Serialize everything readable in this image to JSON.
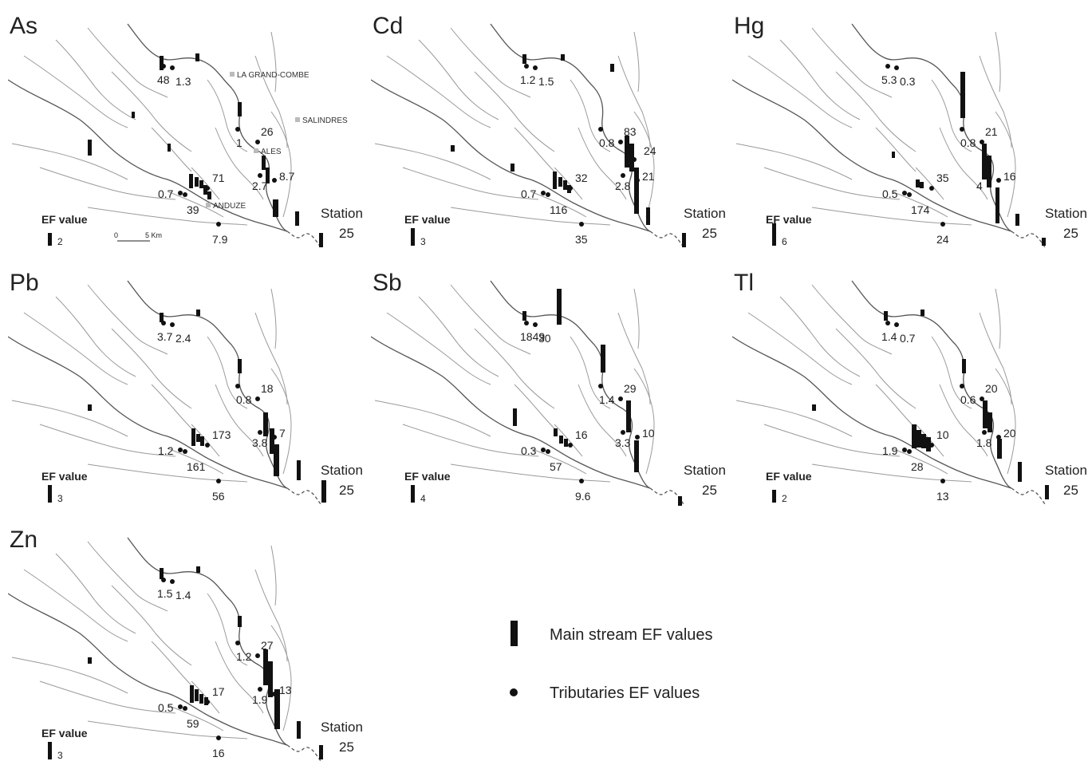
{
  "panels": [
    {
      "element": "As",
      "ef_label": "EF value",
      "ef_legend": "2",
      "station_label": "Station",
      "station_value": "25",
      "tributaries": [
        {
          "id": "t1",
          "value": "48"
        },
        {
          "id": "t2",
          "value": "1.3"
        },
        {
          "id": "t3",
          "value": "1"
        },
        {
          "id": "t4",
          "value": "26"
        },
        {
          "id": "t5",
          "value": "2.7"
        },
        {
          "id": "t6",
          "value": "8.7"
        },
        {
          "id": "t7",
          "value": "0.7"
        },
        {
          "id": "t8",
          "value": "39"
        },
        {
          "id": "t9",
          "value": "71"
        },
        {
          "id": "t10",
          "value": "7.9"
        }
      ],
      "towns": [
        "LA GRAND-COMBE",
        "SALINDRES",
        "ALES",
        "ANDUZE"
      ],
      "scale": {
        "zero": "0",
        "label": "5 Km"
      }
    },
    {
      "element": "Cd",
      "ef_label": "EF value",
      "ef_legend": "3",
      "station_label": "Station",
      "station_value": "25",
      "tributaries": [
        {
          "id": "t1",
          "value": "1.2"
        },
        {
          "id": "t2",
          "value": "1.5"
        },
        {
          "id": "t3",
          "value": "0.8"
        },
        {
          "id": "t4",
          "value": "83"
        },
        {
          "id": "t5",
          "value": "2.8"
        },
        {
          "id": "t6",
          "value": "21"
        },
        {
          "id": "t7",
          "value": "0.7"
        },
        {
          "id": "t8",
          "value": "116"
        },
        {
          "id": "t9",
          "value": "32"
        },
        {
          "id": "t10",
          "value": "35"
        },
        {
          "id": "t11",
          "value": "24"
        }
      ]
    },
    {
      "element": "Hg",
      "ef_label": "EF value",
      "ef_legend": "6",
      "station_label": "Station",
      "station_value": "25",
      "tributaries": [
        {
          "id": "t1",
          "value": "5.3"
        },
        {
          "id": "t2",
          "value": "0.3"
        },
        {
          "id": "t3",
          "value": "0.8"
        },
        {
          "id": "t4",
          "value": "21"
        },
        {
          "id": "t5",
          "value": "4"
        },
        {
          "id": "t6",
          "value": "16"
        },
        {
          "id": "t7",
          "value": "0.5"
        },
        {
          "id": "t8",
          "value": "174"
        },
        {
          "id": "t9",
          "value": "35"
        },
        {
          "id": "t10",
          "value": "24"
        }
      ]
    },
    {
      "element": "Pb",
      "ef_label": "EF value",
      "ef_legend": "3",
      "station_label": "Station",
      "station_value": "25",
      "tributaries": [
        {
          "id": "t1",
          "value": "3.7"
        },
        {
          "id": "t2",
          "value": "2.4"
        },
        {
          "id": "t3",
          "value": "0.8"
        },
        {
          "id": "t4",
          "value": "18"
        },
        {
          "id": "t5",
          "value": "3.8"
        },
        {
          "id": "t6",
          "value": "7"
        },
        {
          "id": "t7",
          "value": "1.2"
        },
        {
          "id": "t8",
          "value": "161"
        },
        {
          "id": "t9",
          "value": "173"
        },
        {
          "id": "t10",
          "value": "56"
        }
      ]
    },
    {
      "element": "Sb",
      "ef_label": "EF value",
      "ef_legend": "4",
      "station_label": "Station",
      "station_value": "25",
      "tributaries": [
        {
          "id": "t1",
          "value": "1849"
        },
        {
          "id": "t2",
          "value": "30"
        },
        {
          "id": "t3",
          "value": "1.4"
        },
        {
          "id": "t4",
          "value": "29"
        },
        {
          "id": "t5",
          "value": "3.3"
        },
        {
          "id": "t6",
          "value": "10"
        },
        {
          "id": "t7",
          "value": "0.3"
        },
        {
          "id": "t8",
          "value": "57"
        },
        {
          "id": "t9",
          "value": "16"
        },
        {
          "id": "t10",
          "value": "9.6"
        }
      ]
    },
    {
      "element": "Tl",
      "ef_label": "EF value",
      "ef_legend": "2",
      "station_label": "Station",
      "station_value": "25",
      "tributaries": [
        {
          "id": "t1",
          "value": "1.4"
        },
        {
          "id": "t2",
          "value": "0.7"
        },
        {
          "id": "t3",
          "value": "0.6"
        },
        {
          "id": "t4",
          "value": "20"
        },
        {
          "id": "t5",
          "value": "1.8"
        },
        {
          "id": "t6",
          "value": "20"
        },
        {
          "id": "t7",
          "value": "1.9"
        },
        {
          "id": "t8",
          "value": "28"
        },
        {
          "id": "t9",
          "value": "10"
        },
        {
          "id": "t10",
          "value": "13"
        }
      ]
    },
    {
      "element": "Zn",
      "ef_label": "EF value",
      "ef_legend": "3",
      "station_label": "Station",
      "station_value": "25",
      "tributaries": [
        {
          "id": "t1",
          "value": "1.5"
        },
        {
          "id": "t2",
          "value": "1.4"
        },
        {
          "id": "t3",
          "value": "1.2"
        },
        {
          "id": "t4",
          "value": "27"
        },
        {
          "id": "t5",
          "value": "1.9"
        },
        {
          "id": "t6",
          "value": "13"
        },
        {
          "id": "t7",
          "value": "0.5"
        },
        {
          "id": "t8",
          "value": "59"
        },
        {
          "id": "t9",
          "value": "17"
        },
        {
          "id": "t10",
          "value": "16"
        }
      ]
    }
  ],
  "legend": {
    "main_stream": "Main stream EF values",
    "tributaries": "Tributaries EF values"
  },
  "colors": {
    "river": "#555555",
    "tributary": "#9a9a9a",
    "bar": "#111111",
    "town": "#bbbbbb"
  }
}
